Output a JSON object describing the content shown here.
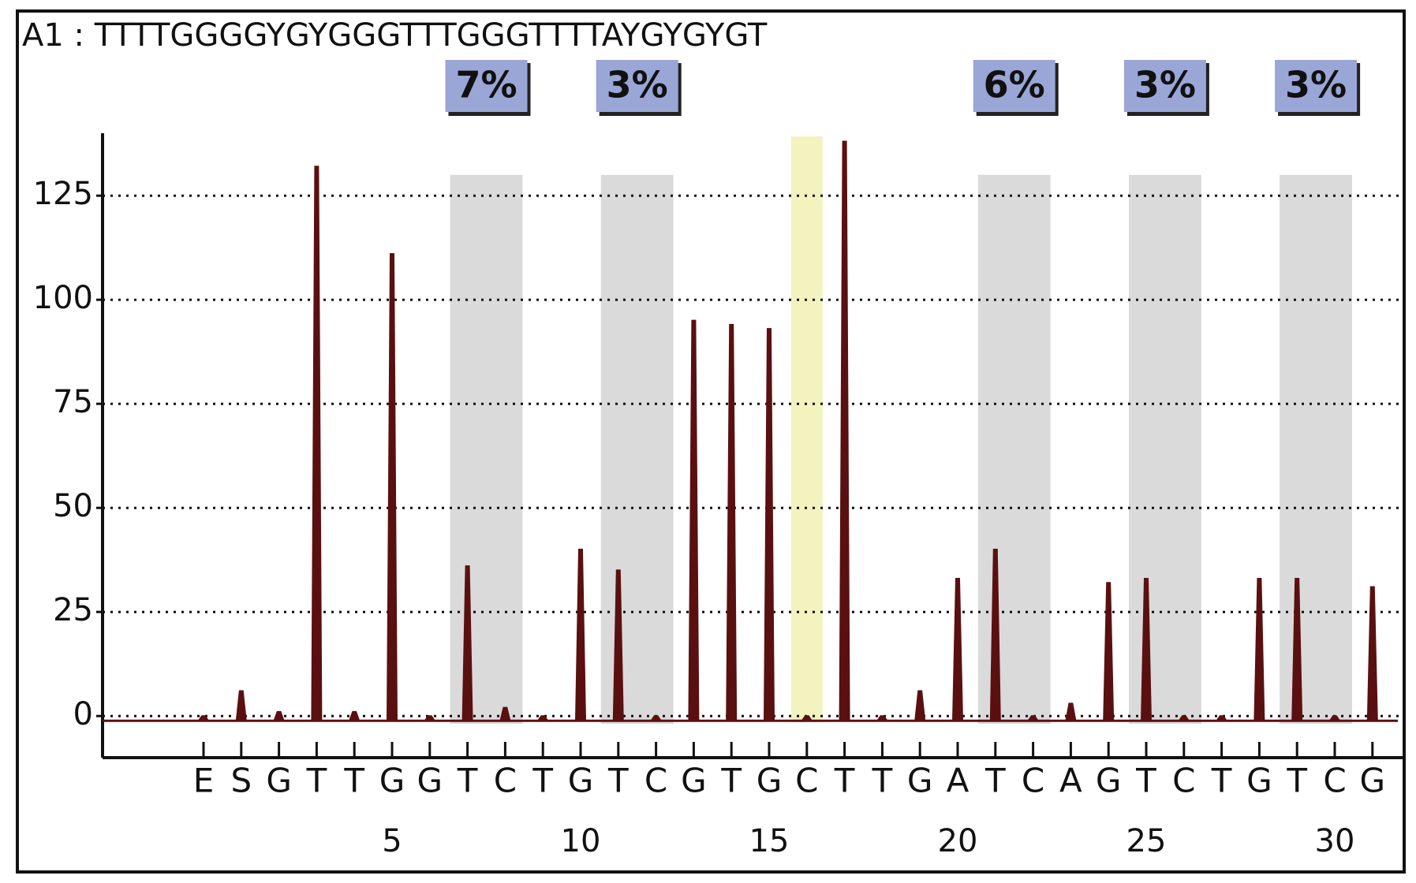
{
  "chart_data": {
    "type": "pyrogram",
    "title": "A1 : TTTTGGGGYGYGGGTTTGGGTTTTAYGYGYGT",
    "categories": [
      "E",
      "S",
      "G",
      "T",
      "T",
      "G",
      "G",
      "T",
      "C",
      "T",
      "G",
      "T",
      "C",
      "G",
      "T",
      "G",
      "C",
      "T",
      "T",
      "G",
      "A",
      "T",
      "C",
      "A",
      "G",
      "T",
      "C",
      "T",
      "G",
      "T",
      "C",
      "G"
    ],
    "values": [
      0,
      6,
      1,
      132,
      1,
      111,
      0,
      36,
      2,
      0,
      40,
      35,
      0,
      95,
      94,
      93,
      0,
      138,
      0,
      6,
      33,
      40,
      0,
      3,
      32,
      33,
      0,
      0,
      33,
      33,
      0,
      31
    ],
    "color": "#5a1010",
    "ylim": [
      -10,
      140
    ],
    "yticks": [
      0,
      25,
      50,
      75,
      100,
      125
    ],
    "xticks": [
      5,
      10,
      15,
      20,
      25,
      30
    ],
    "grid": true,
    "sites": [
      {
        "label": "7%",
        "value": 7,
        "x": [
          7,
          8
        ]
      },
      {
        "label": "3%",
        "value": 3,
        "x": [
          11,
          12
        ]
      },
      {
        "label": "6%",
        "value": 6,
        "x": [
          21,
          22
        ]
      },
      {
        "label": "3%",
        "value": 3,
        "x": [
          25,
          26
        ]
      },
      {
        "label": "3%",
        "value": 3,
        "x": [
          29,
          30
        ]
      }
    ],
    "control_x": 16
  }
}
